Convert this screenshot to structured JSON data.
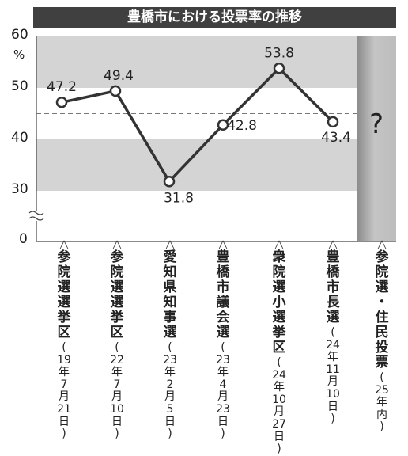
{
  "chart_data": {
    "type": "line",
    "title": "豊橋市における投票率の推移",
    "ylabel_unit": "%",
    "ylim": [
      0,
      60
    ],
    "ytick_labels": [
      "60",
      "50",
      "40",
      "30",
      "0"
    ],
    "axis_break": true,
    "reference_line": 45,
    "categories": [
      {
        "marker": "△",
        "name": "参\n院\n選\n選\n挙\n区",
        "date": "(\n19\n年\n7\n月\n21\n日\n)"
      },
      {
        "marker": "△",
        "name": "参\n院\n選\n選\n挙\n区",
        "date": "(\n22\n年\n7\n月\n10\n日\n)"
      },
      {
        "marker": "△",
        "name": "愛\n知\n県\n知\n事\n選",
        "date": "(\n23\n年\n2\n月\n5\n日\n)"
      },
      {
        "marker": "△",
        "name": "豊\n橋\n市\n議\n会\n選",
        "date": "(\n23\n年\n4\n月\n23\n日\n)"
      },
      {
        "marker": "△",
        "name": "衆\n院\n選\n小\n選\n挙\n区",
        "date": "(\n24\n年\n10\n月\n27\n日\n)"
      },
      {
        "marker": "△",
        "name": "豊\n橋\n市\n長\n選",
        "date": "(\n24\n年\n11\n月\n10\n日\n)"
      },
      {
        "marker": "△",
        "name": "参\n院\n選\n・\n住\n民\n投\n票",
        "date": "(\n25\n年\n内\n)"
      }
    ],
    "series": [
      {
        "values": [
          47.2,
          49.4,
          31.8,
          42.8,
          53.8,
          43.4,
          null
        ]
      }
    ],
    "data_labels": [
      "47.2",
      "49.4",
      "31.8",
      "42.8",
      "53.8",
      "43.4"
    ],
    "future_marker": "?",
    "grid": "alternating bands"
  },
  "colors": {
    "title_bg": "#404040",
    "band": "#d4d4d4",
    "line": "#333333",
    "future_panel": "#a8a8a8"
  }
}
